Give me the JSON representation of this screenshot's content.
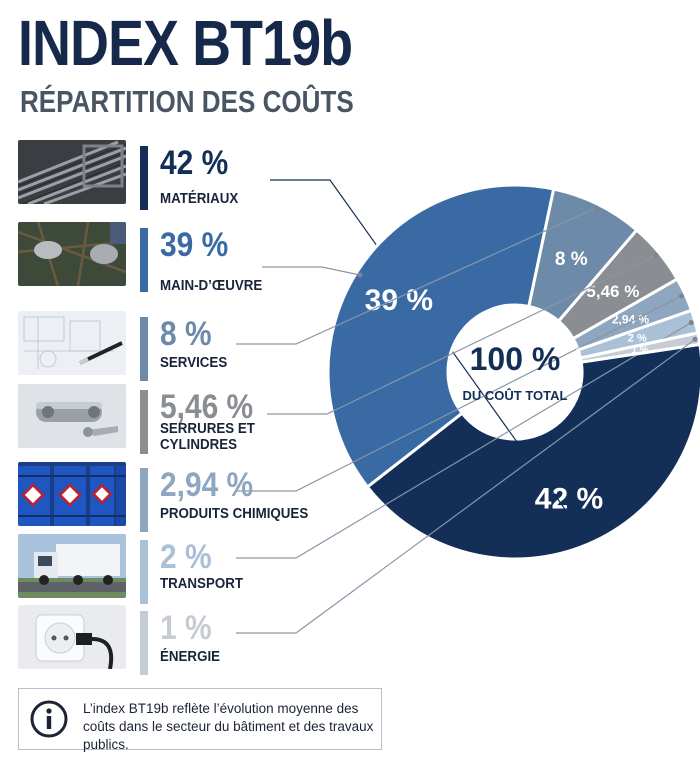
{
  "header": {
    "title": "INDEX BT19b",
    "subtitle": "RÉPARTITION DES COÛTS"
  },
  "info": {
    "text": "L’index BT19b reflète l’évolution moyenne des coûts dans le secteur du bâtiment et des travaux publics.",
    "icon": "info-icon"
  },
  "chart_data": {
    "type": "pie",
    "variant": "donut",
    "center_value": "100 %",
    "center_label": "DU COÛT TOTAL",
    "categories": [
      "MATÉRIAUX",
      "MAIN-D’ŒUVRE",
      "SERVICES",
      "SERRURES ET CYLINDRES",
      "PRODUITS CHIMIQUES",
      "TRANSPORT",
      "ÉNERGIE"
    ],
    "values": [
      42,
      39,
      8,
      5.46,
      2.94,
      2,
      1
    ],
    "value_labels": [
      "42 %",
      "39 %",
      "8 %",
      "5,46 %",
      "2,94 %",
      "2 %",
      "1 %"
    ],
    "colors": [
      "#132f57",
      "#3a6aa4",
      "#6d8aa8",
      "#8a8d92",
      "#8ea6c0",
      "#a9c0d7",
      "#c6ccd3"
    ],
    "text_colors": [
      "#132f57",
      "#3a6aa4",
      "#6d8aa8",
      "#8a8d92",
      "#8ea6c0",
      "#a9c0d7",
      "#c6ccd3"
    ],
    "thumbnails": [
      "steel-bars-image",
      "worker-gloves-image",
      "blueprint-pen-image",
      "lock-cylinder-image",
      "chemical-drums-image",
      "truck-image",
      "power-outlet-image"
    ]
  }
}
